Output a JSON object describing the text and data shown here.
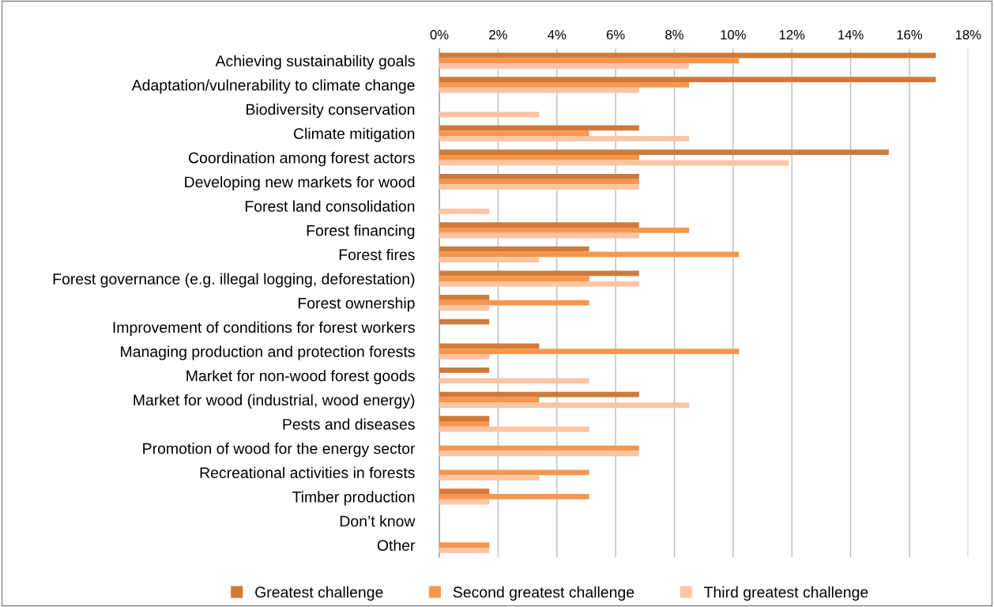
{
  "chart_data": {
    "type": "bar",
    "orientation": "horizontal",
    "categories": [
      "Achieving sustainability goals",
      "Adaptation/vulnerability to climate change",
      "Biodiversity conservation",
      "Climate mitigation",
      "Coordination among forest actors",
      "Developing new markets for wood",
      "Forest land consolidation",
      "Forest financing",
      "Forest fires",
      "Forest governance (e.g. illegal logging, deforestation)",
      "Forest ownership",
      "Improvement of conditions for forest workers",
      "Managing production and protection forests",
      "Market for non-wood forest goods",
      "Market for wood (industrial, wood energy)",
      "Pests and diseases",
      "Promotion of wood for the energy sector",
      "Recreational activities in forests",
      "Timber production",
      "Don’t know",
      "Other"
    ],
    "series": [
      {
        "name": "Greatest challenge",
        "color": "#d07a3a",
        "values": [
          16.9,
          16.9,
          0,
          6.8,
          15.3,
          6.8,
          0,
          6.8,
          5.1,
          6.8,
          1.7,
          1.7,
          3.4,
          1.7,
          6.8,
          1.7,
          0,
          0,
          1.7,
          0,
          0
        ]
      },
      {
        "name": "Second greatest challenge",
        "color": "#f7964a",
        "values": [
          10.2,
          8.5,
          0,
          5.1,
          6.8,
          6.8,
          0,
          8.5,
          10.2,
          5.1,
          5.1,
          0,
          10.2,
          0,
          3.4,
          1.7,
          6.8,
          5.1,
          5.1,
          0,
          1.7
        ]
      },
      {
        "name": "Third greatest challenge",
        "color": "#fbc4a4",
        "values": [
          8.5,
          6.8,
          3.4,
          8.5,
          11.9,
          6.8,
          1.7,
          6.8,
          3.4,
          6.8,
          1.7,
          0,
          1.7,
          5.1,
          8.5,
          5.1,
          6.8,
          3.4,
          1.7,
          0,
          1.7
        ]
      }
    ],
    "xlim": [
      0,
      18
    ],
    "xticks": [
      {
        "value": 0,
        "label": "0%"
      },
      {
        "value": 2,
        "label": "2%"
      },
      {
        "value": 4,
        "label": "4%"
      },
      {
        "value": 6,
        "label": "6%"
      },
      {
        "value": 8,
        "label": "8%"
      },
      {
        "value": 10,
        "label": "10%"
      },
      {
        "value": 12,
        "label": "12%"
      },
      {
        "value": 14,
        "label": "14%"
      },
      {
        "value": 16,
        "label": "16%"
      },
      {
        "value": 18,
        "label": "18%"
      }
    ],
    "grid": "x",
    "legend": "bottom"
  }
}
